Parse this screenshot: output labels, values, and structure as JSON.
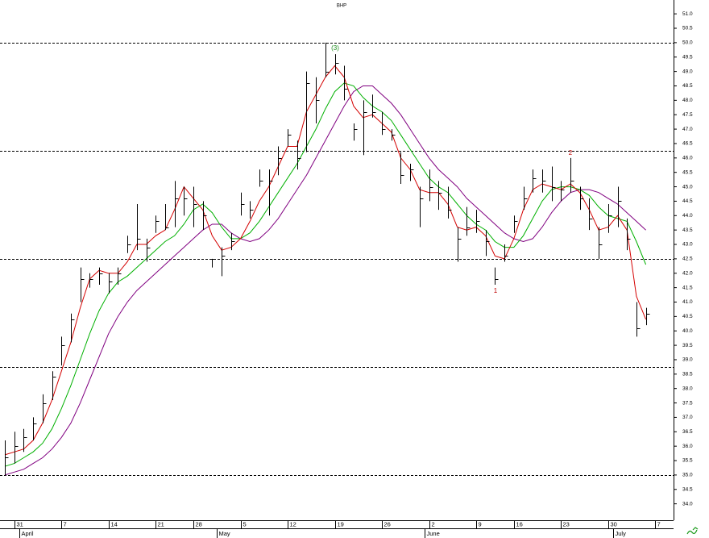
{
  "chart_data": {
    "type": "ohlc",
    "title": "BHP",
    "categories": [
      null,
      "31",
      null,
      null,
      null,
      null,
      "7",
      null,
      null,
      null,
      null,
      "14",
      null,
      null,
      null,
      null,
      "21",
      null,
      null,
      null,
      "28",
      null,
      null,
      null,
      null,
      "5",
      null,
      null,
      null,
      null,
      "12",
      null,
      null,
      null,
      null,
      "19",
      null,
      null,
      null,
      null,
      "26",
      null,
      null,
      null,
      null,
      "2",
      null,
      null,
      null,
      null,
      "9",
      null,
      null,
      null,
      "16",
      null,
      null,
      null,
      null,
      "23",
      null,
      null,
      null,
      null,
      "30",
      null,
      null,
      null,
      null
    ],
    "end_label": "7",
    "month_labels": [
      {
        "value": 2,
        "label": "April"
      },
      {
        "value": 23,
        "label": "May"
      },
      {
        "value": 45,
        "label": "June"
      },
      {
        "value": 65,
        "label": "July"
      }
    ],
    "high": [
      36.2,
      36.5,
      36.6,
      37.0,
      37.8,
      38.6,
      39.8,
      40.6,
      42.2,
      42.0,
      42.2,
      42.0,
      42.2,
      43.3,
      44.4,
      43.2,
      44.0,
      44.4,
      45.2,
      45.0,
      45.0,
      44.5,
      42.5,
      42.9,
      43.4,
      44.8,
      44.5,
      45.6,
      45.6,
      46.4,
      47.0,
      46.6,
      49.0,
      48.8,
      50.0,
      49.6,
      49.2,
      47.2,
      48.0,
      48.2,
      47.6,
      47.0,
      46.2,
      45.8,
      45.0,
      45.6,
      45.2,
      45.0,
      43.6,
      44.3,
      44.2,
      43.5,
      42.2,
      43.0,
      44.0,
      45.0,
      45.6,
      45.6,
      45.7,
      45.2,
      46.0,
      45.0,
      44.6,
      43.6,
      44.4,
      45.0,
      43.9,
      41.0,
      40.8
    ],
    "low": [
      35.0,
      35.4,
      35.8,
      36.2,
      36.8,
      37.6,
      38.8,
      39.6,
      41.0,
      41.5,
      41.6,
      41.3,
      41.6,
      42.7,
      42.8,
      42.4,
      43.4,
      43.5,
      43.6,
      44.0,
      43.6,
      43.5,
      42.2,
      41.9,
      42.8,
      44.0,
      43.9,
      45.0,
      44.0,
      45.4,
      46.4,
      45.6,
      46.2,
      47.2,
      48.8,
      48.9,
      48.0,
      46.6,
      46.1,
      47.4,
      46.8,
      46.6,
      45.1,
      45.2,
      43.6,
      44.5,
      44.2,
      43.9,
      42.4,
      43.3,
      43.4,
      42.6,
      41.6,
      42.4,
      43.4,
      44.2,
      44.8,
      44.8,
      44.5,
      44.5,
      44.8,
      44.2,
      43.5,
      42.5,
      43.4,
      43.6,
      42.8,
      39.8,
      40.2
    ],
    "close": [
      35.6,
      36.0,
      36.3,
      36.8,
      37.5,
      38.4,
      39.5,
      40.4,
      41.8,
      41.8,
      42.0,
      41.7,
      42.0,
      43.0,
      43.2,
      42.9,
      43.8,
      43.6,
      44.6,
      44.6,
      44.4,
      44.0,
      42.5,
      42.6,
      43.1,
      44.4,
      44.2,
      45.2,
      45.2,
      46.0,
      46.8,
      46.0,
      48.6,
      48.0,
      49.0,
      49.3,
      48.4,
      47.0,
      47.6,
      47.6,
      47.0,
      46.8,
      45.4,
      45.6,
      44.6,
      45.0,
      44.8,
      44.2,
      43.2,
      43.6,
      43.8,
      43.1,
      41.8,
      42.6,
      43.8,
      44.6,
      45.3,
      45.2,
      45.0,
      44.9,
      45.2,
      44.6,
      43.9,
      43.0,
      44.0,
      44.5,
      43.2,
      40.1,
      40.6
    ],
    "series": [
      {
        "color": "#d40000",
        "values": [
          35.7,
          35.8,
          35.9,
          36.2,
          36.8,
          37.6,
          38.6,
          39.6,
          40.8,
          41.8,
          42.1,
          42.0,
          42.0,
          42.4,
          43.0,
          43.0,
          43.3,
          43.5,
          44.2,
          45.0,
          44.6,
          44.2,
          43.3,
          42.8,
          42.9,
          43.2,
          43.8,
          44.5,
          45.0,
          45.7,
          46.4,
          46.4,
          47.6,
          48.2,
          48.8,
          49.2,
          48.8,
          47.8,
          47.4,
          47.5,
          47.2,
          46.9,
          46.0,
          45.6,
          44.9,
          44.8,
          44.8,
          44.4,
          43.6,
          43.5,
          43.6,
          43.3,
          42.6,
          42.5,
          43.2,
          44.2,
          44.9,
          45.1,
          45.0,
          44.9,
          45.1,
          44.8,
          44.2,
          43.5,
          43.6,
          44.0,
          43.5,
          41.2,
          40.4
        ]
      },
      {
        "color": "#00b000",
        "values": [
          35.3,
          35.4,
          35.6,
          35.8,
          36.1,
          36.6,
          37.3,
          38.1,
          39.0,
          39.9,
          40.7,
          41.3,
          41.7,
          41.9,
          42.2,
          42.5,
          42.8,
          43.1,
          43.3,
          43.7,
          44.2,
          44.4,
          44.1,
          43.6,
          43.2,
          43.2,
          43.4,
          43.8,
          44.3,
          44.8,
          45.3,
          45.8,
          46.4,
          47.0,
          47.7,
          48.3,
          48.6,
          48.5,
          48.1,
          47.8,
          47.6,
          47.3,
          46.8,
          46.3,
          45.8,
          45.3,
          45.0,
          44.8,
          44.4,
          44.0,
          43.7,
          43.5,
          43.1,
          42.9,
          42.9,
          43.3,
          43.9,
          44.5,
          44.9,
          45.0,
          45.0,
          44.9,
          44.7,
          44.3,
          44.0,
          43.9,
          43.8,
          43.1,
          42.3
        ]
      },
      {
        "color": "#800080",
        "values": [
          35.0,
          35.1,
          35.2,
          35.4,
          35.6,
          35.9,
          36.3,
          36.8,
          37.5,
          38.3,
          39.1,
          39.9,
          40.5,
          41.0,
          41.4,
          41.7,
          42.0,
          42.3,
          42.6,
          42.9,
          43.2,
          43.5,
          43.7,
          43.7,
          43.4,
          43.2,
          43.1,
          43.2,
          43.5,
          43.9,
          44.4,
          44.9,
          45.4,
          46.0,
          46.6,
          47.2,
          47.8,
          48.3,
          48.5,
          48.5,
          48.2,
          47.9,
          47.5,
          47.0,
          46.5,
          46.0,
          45.6,
          45.3,
          45.0,
          44.6,
          44.3,
          44.0,
          43.7,
          43.4,
          43.2,
          43.1,
          43.2,
          43.6,
          44.1,
          44.5,
          44.8,
          44.9,
          44.9,
          44.8,
          44.6,
          44.4,
          44.1,
          43.8,
          43.5
        ]
      }
    ],
    "levels": [
      35,
      38.75,
      42.5,
      46.25,
      50
    ],
    "annotations": [
      "(3)",
      "2",
      "1"
    ],
    "ylim": [
      33.43,
      51.48
    ],
    "yticks": [
      {
        "value": 34,
        "label": "34.0"
      },
      {
        "value": 34.5,
        "label": "34.5"
      },
      {
        "value": 35,
        "label": "35.0"
      },
      {
        "value": 35.5,
        "label": "35.5"
      },
      {
        "value": 36,
        "label": "36.0"
      },
      {
        "value": 36.5,
        "label": "36.5"
      },
      {
        "value": 37,
        "label": "37.0"
      },
      {
        "value": 37.5,
        "label": "37.5"
      },
      {
        "value": 38,
        "label": "38.0"
      },
      {
        "value": 38.5,
        "label": "38.5"
      },
      {
        "value": 39,
        "label": "39.0"
      },
      {
        "value": 39.5,
        "label": "39.5"
      },
      {
        "value": 40,
        "label": "40.0"
      },
      {
        "value": 40.5,
        "label": "40.5"
      },
      {
        "value": 41,
        "label": "41.0"
      },
      {
        "value": 41.5,
        "label": "41.5"
      },
      {
        "value": 42,
        "label": "42.0"
      },
      {
        "value": 42.5,
        "label": "42.5"
      },
      {
        "value": 43,
        "label": "43.0"
      },
      {
        "value": 43.5,
        "label": "43.5"
      },
      {
        "value": 44,
        "label": "44.0"
      },
      {
        "value": 44.5,
        "label": "44.5"
      },
      {
        "value": 45,
        "label": "45.0"
      },
      {
        "value": 45.5,
        "label": "45.5"
      },
      {
        "value": 46,
        "label": "46.0"
      },
      {
        "value": 46.5,
        "label": "46.5"
      },
      {
        "value": 47,
        "label": "47.0"
      },
      {
        "value": 47.5,
        "label": "47.5"
      },
      {
        "value": 48,
        "label": "48.0"
      },
      {
        "value": 48.5,
        "label": "48.5"
      },
      {
        "value": 49,
        "label": "49.0"
      },
      {
        "value": 49.5,
        "label": "49.5"
      },
      {
        "value": 50,
        "label": "50.0"
      },
      {
        "value": 50.5,
        "label": "50.5"
      },
      {
        "value": 51,
        "label": "51.0"
      }
    ]
  }
}
